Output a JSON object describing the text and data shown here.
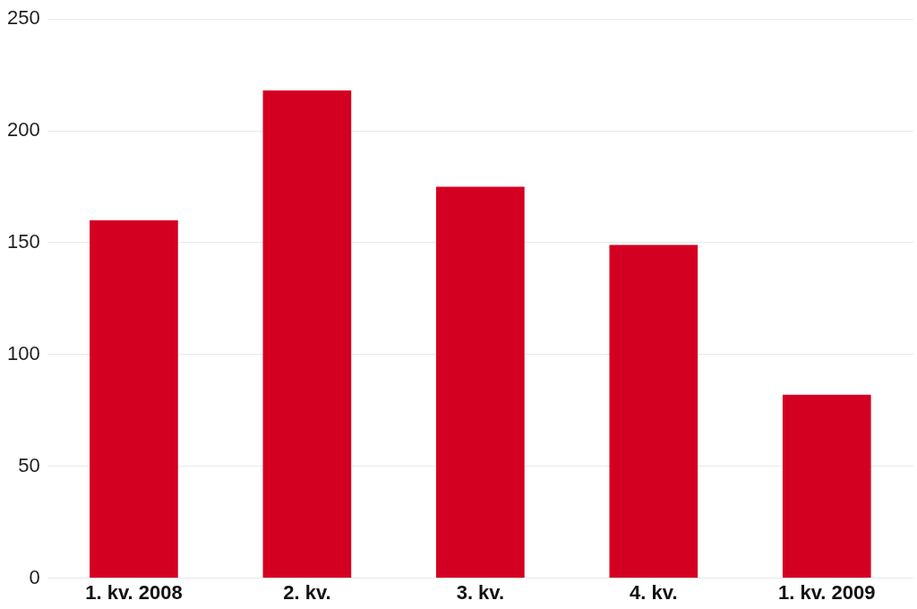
{
  "chart_data": {
    "type": "bar",
    "categories": [
      "1. kv. 2008",
      "2. kv.",
      "3. kv.",
      "4. kv.",
      "1. kv. 2009"
    ],
    "values": [
      160,
      218,
      175,
      149,
      82
    ],
    "color": "#d40022",
    "ylim": [
      0,
      250
    ],
    "yticks": [
      0,
      50,
      100,
      150,
      200,
      250
    ],
    "grid": "y"
  }
}
